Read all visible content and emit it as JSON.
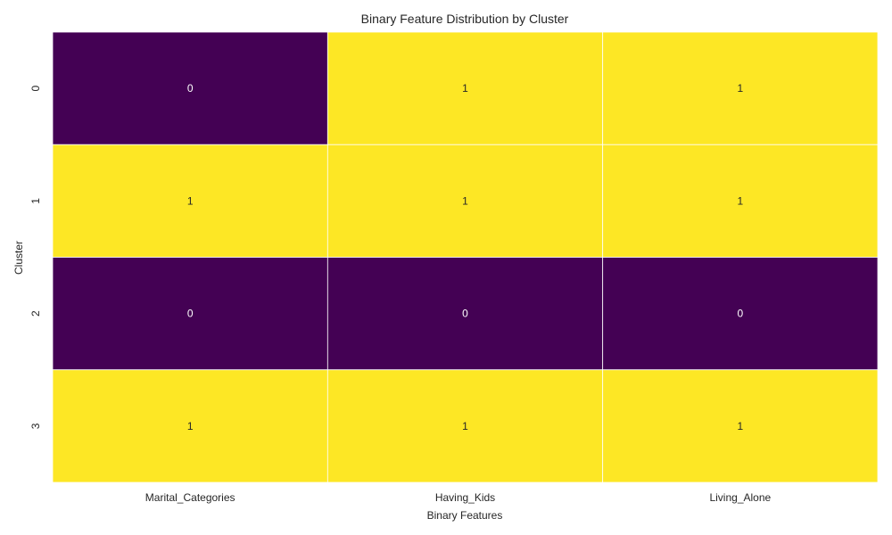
{
  "chart_data": {
    "type": "heatmap",
    "title": "Binary Feature Distribution by Cluster",
    "xlabel": "Binary Features",
    "ylabel": "Cluster",
    "x_categories": [
      "Marital_Categories",
      "Having_Kids",
      "Living_Alone"
    ],
    "y_categories": [
      "0",
      "1",
      "2",
      "3"
    ],
    "values": [
      [
        0,
        1,
        1
      ],
      [
        1,
        1,
        1
      ],
      [
        0,
        0,
        0
      ],
      [
        1,
        1,
        1
      ]
    ],
    "colormap": {
      "0": "#440154",
      "1": "#fde725"
    },
    "annotation_colors": {
      "0": "#ffffff",
      "1": "#262626"
    },
    "grid": false,
    "legend": "none"
  }
}
